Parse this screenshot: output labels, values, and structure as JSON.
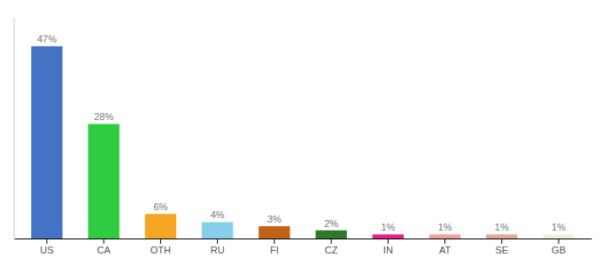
{
  "chart_data": {
    "type": "bar",
    "categories": [
      "US",
      "CA",
      "OTH",
      "RU",
      "FI",
      "CZ",
      "IN",
      "AT",
      "SE",
      "GB"
    ],
    "values": [
      47,
      28,
      6,
      4,
      3,
      2,
      1,
      1,
      1,
      1
    ],
    "value_labels": [
      "47%",
      "28%",
      "6%",
      "4%",
      "3%",
      "2%",
      "1%",
      "1%",
      "1%",
      "1%"
    ],
    "colors": [
      "#4472C4",
      "#2ECC40",
      "#F5A623",
      "#87CEEB",
      "#C0621A",
      "#2D7A2D",
      "#E91E8C",
      "#F4A0A0",
      "#E8A898",
      "#F5F0DC"
    ],
    "ylim": [
      0,
      54
    ],
    "data_labels": true,
    "tick_labels": "x"
  }
}
